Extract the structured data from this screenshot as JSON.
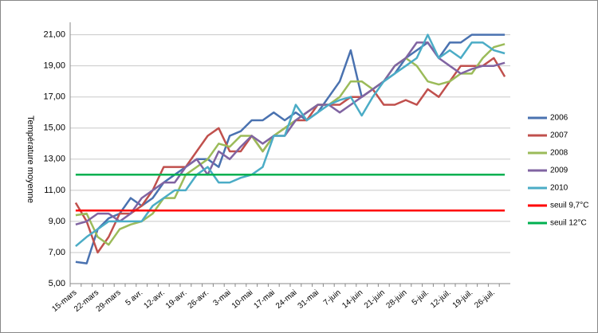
{
  "chart_data": {
    "type": "line",
    "y_label": "Température moyenne",
    "categories": [
      "15-mars",
      null,
      "22-mars",
      null,
      "29-mars",
      null,
      "5 avr.",
      null,
      "12-avr.",
      null,
      "19-avr.",
      null,
      "26-avr.",
      null,
      "3-mai",
      null,
      "10-mai",
      null,
      "17-mai",
      null,
      "24-mai",
      null,
      "31-mai",
      null,
      "7-juin",
      null,
      "14-juin",
      null,
      "21-juin",
      null,
      "28-juin",
      null,
      "5-juil.",
      null,
      "12-juil.",
      null,
      "19-juil.",
      null,
      "26-juil.",
      null
    ],
    "series": [
      {
        "name": "2006",
        "color": "#4a72b0",
        "values": [
          6.4,
          6.3,
          8.5,
          9.2,
          9.5,
          10.5,
          10,
          10.5,
          11.5,
          12,
          12.5,
          13,
          13,
          12.5,
          14.5,
          14.8,
          15.5,
          15.5,
          16,
          15.5,
          16,
          15.5,
          16,
          17,
          18,
          20,
          17,
          17.5,
          18,
          18.5,
          19.5,
          20,
          20.5,
          19.5,
          20.5,
          20.5,
          21,
          21,
          21,
          21
        ]
      },
      {
        "name": "2007",
        "color": "#c0504d",
        "values": [
          10.2,
          9,
          7,
          8,
          9.5,
          9.5,
          10,
          11,
          12.5,
          12.5,
          12.5,
          13.5,
          14.5,
          15,
          13.5,
          13.5,
          14.5,
          13.5,
          14.5,
          15,
          15.5,
          15.5,
          16.5,
          16.5,
          16.5,
          17,
          17,
          17.5,
          16.5,
          16.5,
          16.8,
          16.5,
          17.5,
          17,
          18,
          19,
          19,
          19,
          19.5,
          18.3
        ]
      },
      {
        "name": "2008",
        "color": "#9bbb59",
        "values": [
          9.4,
          9.5,
          8,
          7.5,
          8.5,
          8.8,
          9,
          9.5,
          10.5,
          10.5,
          12,
          12.5,
          13,
          14,
          13.8,
          14.5,
          14.5,
          13.5,
          14.5,
          15,
          15.5,
          16,
          16.5,
          16.5,
          17,
          18,
          18,
          17.5,
          18,
          19,
          19.5,
          19,
          18,
          17.8,
          18,
          18.5,
          18.5,
          19.5,
          20.2,
          20.4
        ]
      },
      {
        "name": "2009",
        "color": "#8064a2",
        "values": [
          8.8,
          9,
          9.5,
          9.5,
          9,
          9.5,
          10.5,
          11,
          11.5,
          11.5,
          12.5,
          13,
          12,
          13.5,
          13,
          13.8,
          14.5,
          14,
          14.5,
          14.5,
          15.5,
          16,
          16.5,
          16.5,
          16,
          16.5,
          17,
          17.5,
          18,
          19,
          19.5,
          20.5,
          20.5,
          19.5,
          19,
          18.5,
          18.8,
          19,
          19,
          19.2
        ]
      },
      {
        "name": "2010",
        "color": "#4bacc6",
        "values": [
          7.4,
          8,
          8.5,
          9,
          9,
          9,
          9,
          10,
          10.5,
          11,
          11,
          12,
          12.5,
          11.5,
          11.5,
          11.8,
          12,
          12.5,
          14.5,
          14.5,
          16.5,
          15.5,
          16,
          16.5,
          16.8,
          17,
          15.8,
          17,
          18,
          18.5,
          19,
          19.5,
          21,
          19.5,
          20,
          19.5,
          20.5,
          20.5,
          20,
          19.8
        ]
      },
      {
        "name": "seuil 9,7°C",
        "color": "#ff0000",
        "values": [
          9.7,
          9.7,
          9.7,
          9.7,
          9.7,
          9.7,
          9.7,
          9.7,
          9.7,
          9.7,
          9.7,
          9.7,
          9.7,
          9.7,
          9.7,
          9.7,
          9.7,
          9.7,
          9.7,
          9.7,
          9.7,
          9.7,
          9.7,
          9.7,
          9.7,
          9.7,
          9.7,
          9.7,
          9.7,
          9.7,
          9.7,
          9.7,
          9.7,
          9.7,
          9.7,
          9.7,
          9.7,
          9.7,
          9.7,
          9.7
        ]
      },
      {
        "name": "seuil 12°C",
        "color": "#00b050",
        "values": [
          12,
          12,
          12,
          12,
          12,
          12,
          12,
          12,
          12,
          12,
          12,
          12,
          12,
          12,
          12,
          12,
          12,
          12,
          12,
          12,
          12,
          12,
          12,
          12,
          12,
          12,
          12,
          12,
          12,
          12,
          12,
          12,
          12,
          12,
          12,
          12,
          12,
          12,
          12,
          12
        ]
      }
    ],
    "ylim": [
      5,
      21.8
    ],
    "yticks": [
      {
        "value": 5,
        "label": "5,00"
      },
      {
        "value": 7,
        "label": "7,00"
      },
      {
        "value": 9,
        "label": "9,00"
      },
      {
        "value": 11,
        "label": "11,00"
      },
      {
        "value": 13,
        "label": "13,00"
      },
      {
        "value": 15,
        "label": "15,00"
      },
      {
        "value": 17,
        "label": "17,00"
      },
      {
        "value": 19,
        "label": "19,00"
      },
      {
        "value": 21,
        "label": "21,00"
      }
    ],
    "grid": true,
    "legend": "right"
  }
}
